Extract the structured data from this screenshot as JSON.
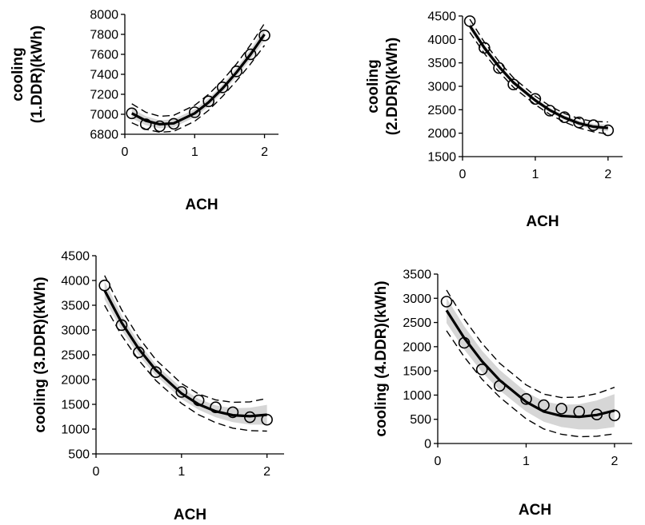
{
  "chart_data": [
    {
      "type": "scatter",
      "xlabel": "ACH",
      "ylabel": [
        "cooling",
        "(1.DDR)(kWh)"
      ],
      "ylim": [
        6800,
        8000
      ],
      "xlim": [
        0,
        2.2
      ],
      "yticks": [
        6800,
        7000,
        7200,
        7400,
        7600,
        7800,
        8000
      ],
      "xticks": [
        0,
        1,
        2
      ],
      "grid": false,
      "x": [
        0.1,
        0.3,
        0.5,
        0.7,
        1.0,
        1.2,
        1.4,
        1.6,
        1.8,
        2.0
      ],
      "values": [
        7010,
        6900,
        6880,
        6905,
        7020,
        7130,
        7270,
        7430,
        7600,
        7790
      ],
      "fit": [
        7010,
        6935,
        6900,
        6910,
        7010,
        7120,
        7260,
        7420,
        7600,
        7800
      ],
      "band_halfwidth": [
        50,
        45,
        40,
        40,
        40,
        40,
        40,
        45,
        50,
        60
      ],
      "ci_halfwidth": [
        95,
        85,
        80,
        80,
        80,
        80,
        80,
        85,
        95,
        110
      ]
    },
    {
      "type": "scatter",
      "xlabel": "ACH",
      "ylabel": [
        "cooling",
        "(2.DDR)(kWh)"
      ],
      "ylim": [
        1500,
        4500
      ],
      "xlim": [
        0,
        2.2
      ],
      "yticks": [
        1500,
        2000,
        2500,
        3000,
        3500,
        4000,
        4500
      ],
      "xticks": [
        0,
        1,
        2
      ],
      "grid": false,
      "x": [
        0.1,
        0.3,
        0.5,
        0.7,
        1.0,
        1.2,
        1.4,
        1.6,
        1.8,
        2.0
      ],
      "values": [
        4390,
        3820,
        3390,
        3040,
        2730,
        2480,
        2340,
        2230,
        2170,
        2060
      ],
      "fit": [
        4290,
        3820,
        3420,
        3080,
        2700,
        2490,
        2330,
        2210,
        2140,
        2110
      ],
      "band_halfwidth": [
        80,
        70,
        60,
        55,
        50,
        50,
        50,
        55,
        60,
        70
      ],
      "ci_halfwidth": [
        140,
        120,
        110,
        100,
        90,
        90,
        90,
        100,
        110,
        130
      ]
    },
    {
      "type": "scatter",
      "xlabel": "ACH",
      "ylabel": [
        "cooling (3.DDR)(kWh)"
      ],
      "ylim": [
        500,
        4500
      ],
      "xlim": [
        0,
        2.2
      ],
      "yticks": [
        500,
        1000,
        1500,
        2000,
        2500,
        3000,
        3500,
        4000,
        4500
      ],
      "xticks": [
        0,
        1,
        2
      ],
      "grid": false,
      "x": [
        0.1,
        0.3,
        0.5,
        0.7,
        1.0,
        1.2,
        1.4,
        1.6,
        1.8,
        2.0
      ],
      "values": [
        3900,
        3100,
        2550,
        2150,
        1750,
        1580,
        1440,
        1340,
        1240,
        1190
      ],
      "fit": [
        3800,
        3150,
        2620,
        2190,
        1720,
        1500,
        1360,
        1280,
        1260,
        1290
      ],
      "band_halfwidth": [
        180,
        150,
        130,
        110,
        110,
        110,
        120,
        140,
        170,
        200
      ],
      "ci_halfwidth": [
        300,
        260,
        230,
        210,
        200,
        210,
        230,
        260,
        290,
        330
      ]
    },
    {
      "type": "scatter",
      "xlabel": "ACH",
      "ylabel": [
        "cooling (4.DDR)(kWh)"
      ],
      "ylim": [
        0,
        3500
      ],
      "xlim": [
        0,
        2.2
      ],
      "yticks": [
        0,
        500,
        1000,
        1500,
        2000,
        2500,
        3000,
        3500
      ],
      "xticks": [
        0,
        1,
        2
      ],
      "grid": false,
      "x": [
        0.1,
        0.3,
        0.5,
        0.7,
        1.0,
        1.2,
        1.4,
        1.6,
        1.8,
        2.0
      ],
      "values": [
        2930,
        2080,
        1530,
        1190,
        920,
        790,
        720,
        660,
        600,
        580
      ],
      "fit": [
        2750,
        2180,
        1700,
        1310,
        860,
        660,
        570,
        550,
        590,
        680
      ],
      "band_halfwidth": [
        260,
        240,
        220,
        210,
        200,
        210,
        230,
        260,
        300,
        340
      ],
      "ci_halfwidth": [
        420,
        390,
        370,
        350,
        350,
        360,
        380,
        410,
        440,
        480
      ]
    }
  ]
}
